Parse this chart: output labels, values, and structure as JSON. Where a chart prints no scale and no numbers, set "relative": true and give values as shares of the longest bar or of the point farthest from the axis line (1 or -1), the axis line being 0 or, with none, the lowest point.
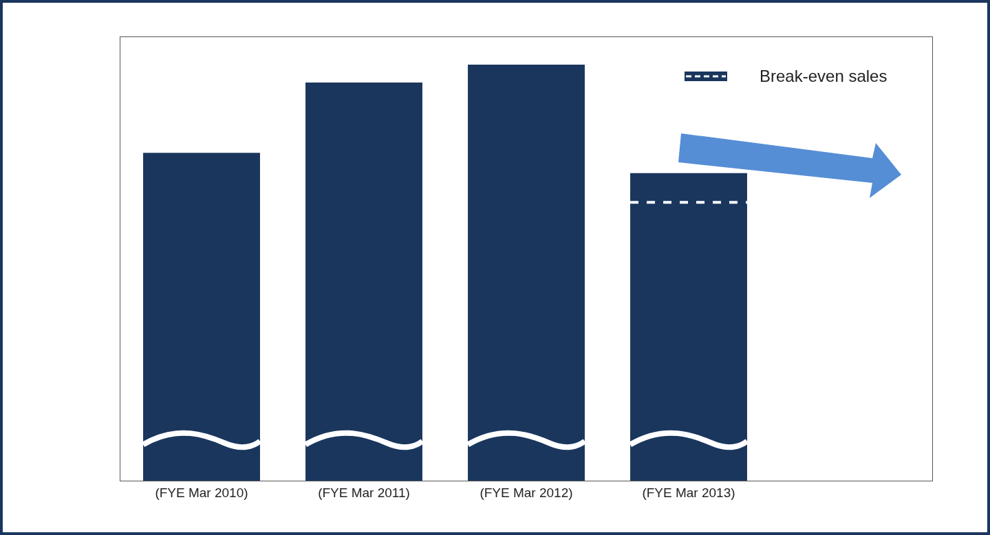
{
  "chart_data": {
    "type": "bar",
    "relative": true,
    "categories": [
      "(FYE Mar 2010)",
      "(FYE Mar 2011)",
      "(FYE Mar 2012)",
      "(FYE Mar 2013)"
    ],
    "series": [
      {
        "color": "#1a365d",
        "values": [
          0.788,
          0.957,
          1,
          0.739
        ]
      }
    ],
    "ref_lines": [
      {
        "axis": "y",
        "value": 0.669,
        "label": "Break-even sales",
        "color": "#ffffff",
        "line_style": "dashed"
      }
    ],
    "grid": false
  }
}
